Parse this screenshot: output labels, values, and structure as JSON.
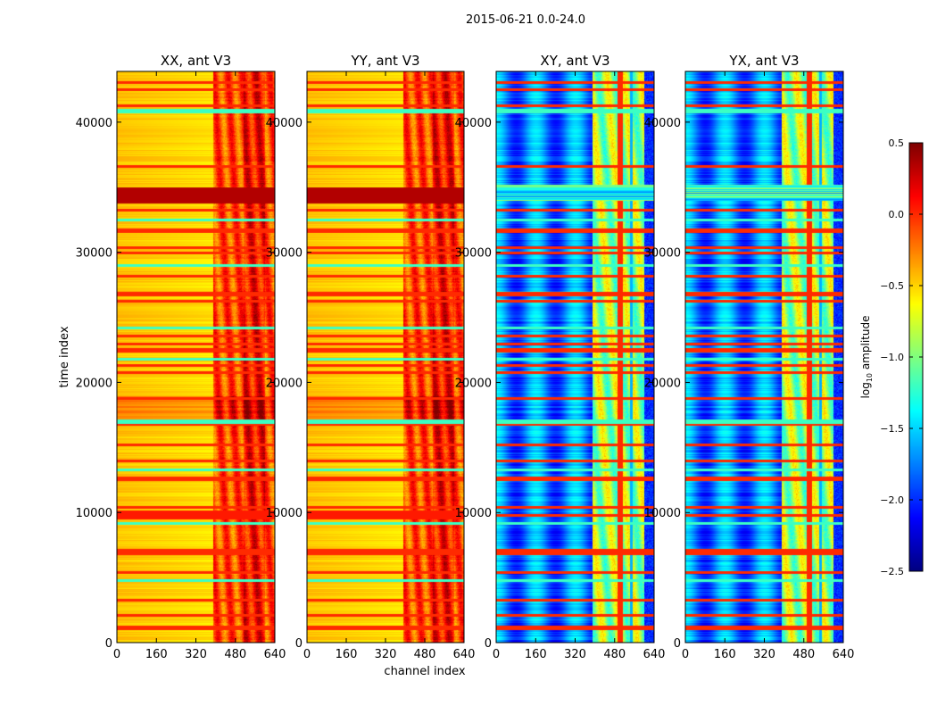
{
  "chart_data": {
    "type": "heatmap",
    "suptitle": "2015-06-21 0.0-24.0",
    "xlabel": "channel index",
    "ylabel": "time index",
    "xlim": [
      0,
      640
    ],
    "ylim": [
      0,
      43900
    ],
    "xticks": [
      "0",
      "160",
      "320",
      "480",
      "640"
    ],
    "yticks": [
      "0",
      "10000",
      "20000",
      "30000",
      "40000"
    ],
    "panels": [
      {
        "title": "XX, ant V3",
        "base": -0.45,
        "high_band": -0.1
      },
      {
        "title": "YY, ant V3",
        "base": -0.45,
        "high_band": -0.1
      },
      {
        "title": "XY, ant V3",
        "base": -1.75,
        "high_band": -0.9
      },
      {
        "title": "YX, ant V3",
        "base": -1.75,
        "high_band": -0.9
      }
    ],
    "rfi_rows_time": [
      1200,
      2100,
      3300,
      4800,
      5400,
      6900,
      7100,
      9200,
      9800,
      10400,
      12600,
      13300,
      14000,
      15200,
      16800,
      17000,
      18800,
      20800,
      21300,
      21800,
      22500,
      23000,
      23600,
      24200,
      26300,
      26800,
      28200,
      29000,
      30000,
      30400,
      31700,
      32500,
      33300,
      34500,
      36600,
      40900,
      41300,
      42500,
      43100
    ],
    "colorbar": {
      "label": "log10 amplitude",
      "label_base": "log",
      "label_sub": "10",
      "label_rest": " amplitude",
      "ticks": [
        "0.5",
        "0.0",
        "−0.5",
        "−1.0",
        "−1.5",
        "−2.0",
        "−2.5"
      ],
      "range": [
        -2.5,
        0.5
      ],
      "cmap": "jet"
    }
  }
}
